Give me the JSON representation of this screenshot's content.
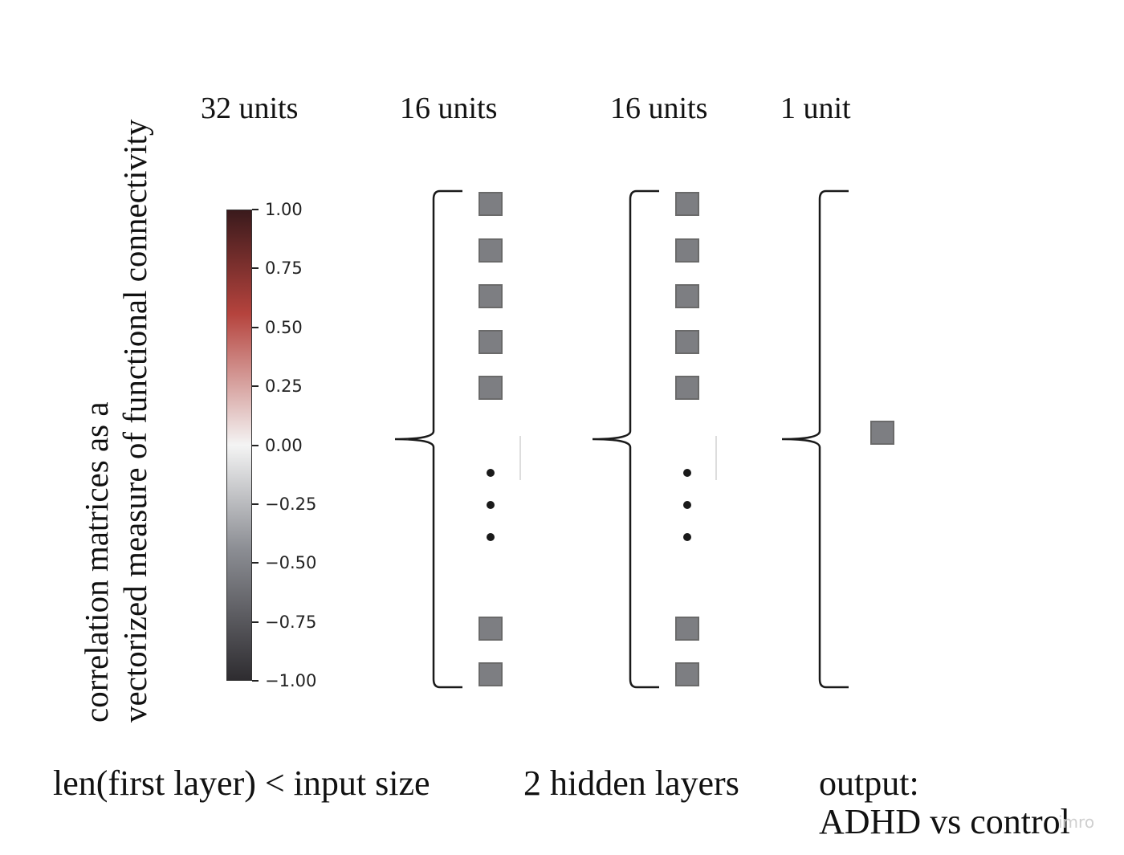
{
  "header_labels": [
    "32 units",
    "16 units",
    "16 units",
    "1 unit"
  ],
  "vertical_title": {
    "line1": "correlation matrices as a",
    "line2": "vectorized measure of functional connectivity"
  },
  "colorbar": {
    "ticks": [
      "1.00",
      "0.75",
      "0.50",
      "0.25",
      "0.00",
      "−0.25",
      "−0.50",
      "−0.75",
      "−1.00"
    ],
    "range": [
      -1.0,
      1.0
    ],
    "colors": {
      "top": "#3a1a1c",
      "positive": "#b5433d",
      "middle": "#f4f4f4",
      "negative": "#8c8e94",
      "bottom": "#2e2c30"
    }
  },
  "layers": [
    {
      "units_shown_top": 5,
      "units_shown_bottom": 2,
      "ellipsis": true
    },
    {
      "units_shown_top": 5,
      "units_shown_bottom": 2,
      "ellipsis": true
    },
    {
      "units_shown_top": 1,
      "units_shown_bottom": 0,
      "ellipsis": false
    }
  ],
  "unit_color": "#7d7e82",
  "footer": {
    "left": "len(first layer) < input size",
    "middle": "2 hidden layers",
    "right_line1": "output:",
    "right_line2": "ADHD vs control"
  },
  "watermark": "imro"
}
